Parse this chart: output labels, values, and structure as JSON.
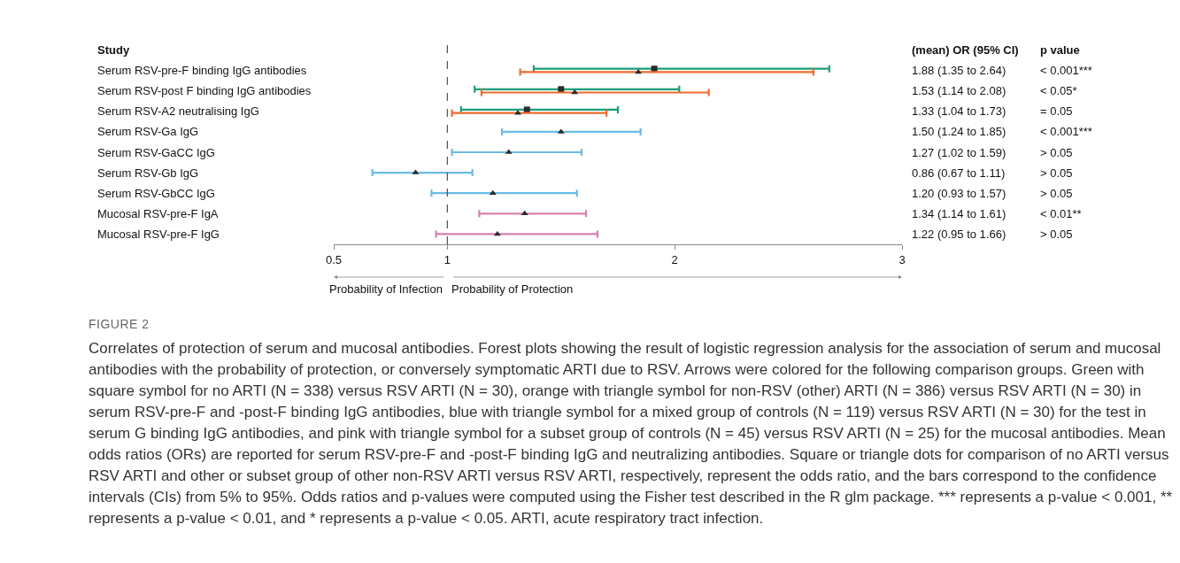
{
  "chart_data": {
    "type": "scatter",
    "orientation": "horizontal",
    "categories": [
      "Serum RSV-pre-F binding IgG antibodies",
      "Serum RSV-post F binding IgG antibodies",
      "Serum RSV-A2 neutralising IgG",
      "Serum RSV-Ga IgG",
      "Serum RSV-GaCC IgG",
      "Serum RSV-Gb IgG",
      "Serum RSV-GbCC IgG",
      "Mucosal RSV-pre-F IgA",
      "Mucosal RSV-pre-F IgG"
    ],
    "series": [
      {
        "color": "#1b9e77",
        "colors": [
          "#2b2b2b",
          "#2b2b2b",
          "#2b2b2b",
          null,
          null,
          null,
          null,
          null,
          null
        ],
        "marker": "square",
        "values": [
          1.91,
          1.5,
          1.35,
          null,
          null,
          null,
          null,
          null,
          null
        ],
        "errors": [
          [
            1.38,
            2.68
          ],
          [
            1.12,
            2.02
          ],
          [
            1.06,
            1.75
          ],
          null,
          null,
          null,
          null,
          null,
          null
        ]
      },
      {
        "color": "#ee6a2c",
        "colors": [
          "#2b2b2b",
          "#2b2b2b",
          "#2b2b2b",
          null,
          null,
          null,
          null,
          null,
          null
        ],
        "marker": "triangle",
        "values": [
          1.84,
          1.56,
          1.31,
          null,
          null,
          null,
          null,
          null,
          null
        ],
        "errors": [
          [
            1.32,
            2.61
          ],
          [
            1.15,
            2.15
          ],
          [
            1.02,
            1.7
          ],
          null,
          null,
          null,
          null,
          null,
          null
        ]
      },
      {
        "color": "#6bbbe6",
        "colors": [
          null,
          null,
          null,
          "#2b2b2b",
          "#2b2b2b",
          "#2b2b2b",
          "#2b2b2b",
          null,
          null
        ],
        "marker": "triangle",
        "values": [
          null,
          null,
          null,
          1.5,
          1.27,
          0.86,
          1.2,
          null,
          null
        ],
        "errors": [
          null,
          null,
          null,
          [
            1.24,
            1.85
          ],
          [
            1.02,
            1.59
          ],
          [
            0.67,
            1.11
          ],
          [
            0.93,
            1.57
          ],
          null,
          null
        ]
      },
      {
        "color": "#d781ad",
        "colors": [
          null,
          null,
          null,
          null,
          null,
          null,
          null,
          "#2b2b2b",
          "#2b2b2b"
        ],
        "marker": "triangle",
        "values": [
          null,
          null,
          null,
          null,
          null,
          null,
          null,
          1.34,
          1.22
        ],
        "errors": [
          null,
          null,
          null,
          null,
          null,
          null,
          null,
          [
            1.14,
            1.61
          ],
          [
            0.95,
            1.66
          ]
        ]
      }
    ],
    "xlim": [
      0.5,
      3
    ],
    "xticks": [
      0.5,
      1,
      2,
      3
    ],
    "grid": false,
    "tick_labels": "x",
    "ref_lines": [
      {
        "axis": "x",
        "value": 1,
        "color": "#555555",
        "line_style": "dashed"
      }
    ],
    "annotations": [
      "Study",
      "(mean) OR (95% CI)",
      "p value",
      "1.88 (1.35 to 2.64)",
      "1.53 (1.14 to 2.08)",
      "1.33 (1.04 to 1.73)",
      "1.50 (1.24 to 1.85)",
      "1.27 (1.02 to 1.59)",
      "0.86 (0.67 to 1.11)",
      "1.20 (0.93 to 1.57)",
      "1.34 (1.14 to 1.61)",
      "1.22 (0.95 to 1.66)",
      "< 0.001***",
      "< 0.05*",
      "= 0.05",
      "< 0.001***",
      "> 0.05",
      "> 0.05",
      "> 0.05",
      "< 0.01**",
      "> 0.05",
      "Probability of Infection",
      "Probability of Protection",
      "FIGURE 2",
      "Correlates of protection of serum and mucosal antibodies. Forest plots showing the result of logistic regression analysis for the association of serum and mucosal antibodies with the probability of protection, or conversely symptomatic ARTI due to RSV. Arrows were colored for the following comparison groups. Green with square symbol for no ARTI (N = 338) versus RSV ARTI (N = 30), orange with triangle symbol for non-RSV (other) ARTI (N = 386) versus RSV ARTI (N = 30) in serum RSV-pre-F and -post-F binding IgG antibodies, blue with triangle symbol for a mixed group of controls (N = 119) versus RSV ARTI (N = 30) for the test in serum G binding IgG antibodies, and pink with triangle symbol for a subset group of controls (N = 45) versus RSV ARTI (N = 25) for the mucosal antibodies. Mean odds ratios (ORs) are reported for serum RSV-pre-F and -post-F binding IgG and neutralizing antibodies. Square or triangle dots for comparison of no ARTI versus RSV ARTI and other or subset group of other non-RSV ARTI versus RSV ARTI, respectively, represent the odds ratio, and the bars correspond to the confidence intervals (CIs) from 5% to 95%. Odds ratios and p-values were computed using the Fisher test described in the R glm package. *** represents a p-value < 0.001, ** represents a p-value < 0.01, and * represents a p-value < 0.05. ARTI, acute respiratory tract infection."
    ]
  }
}
